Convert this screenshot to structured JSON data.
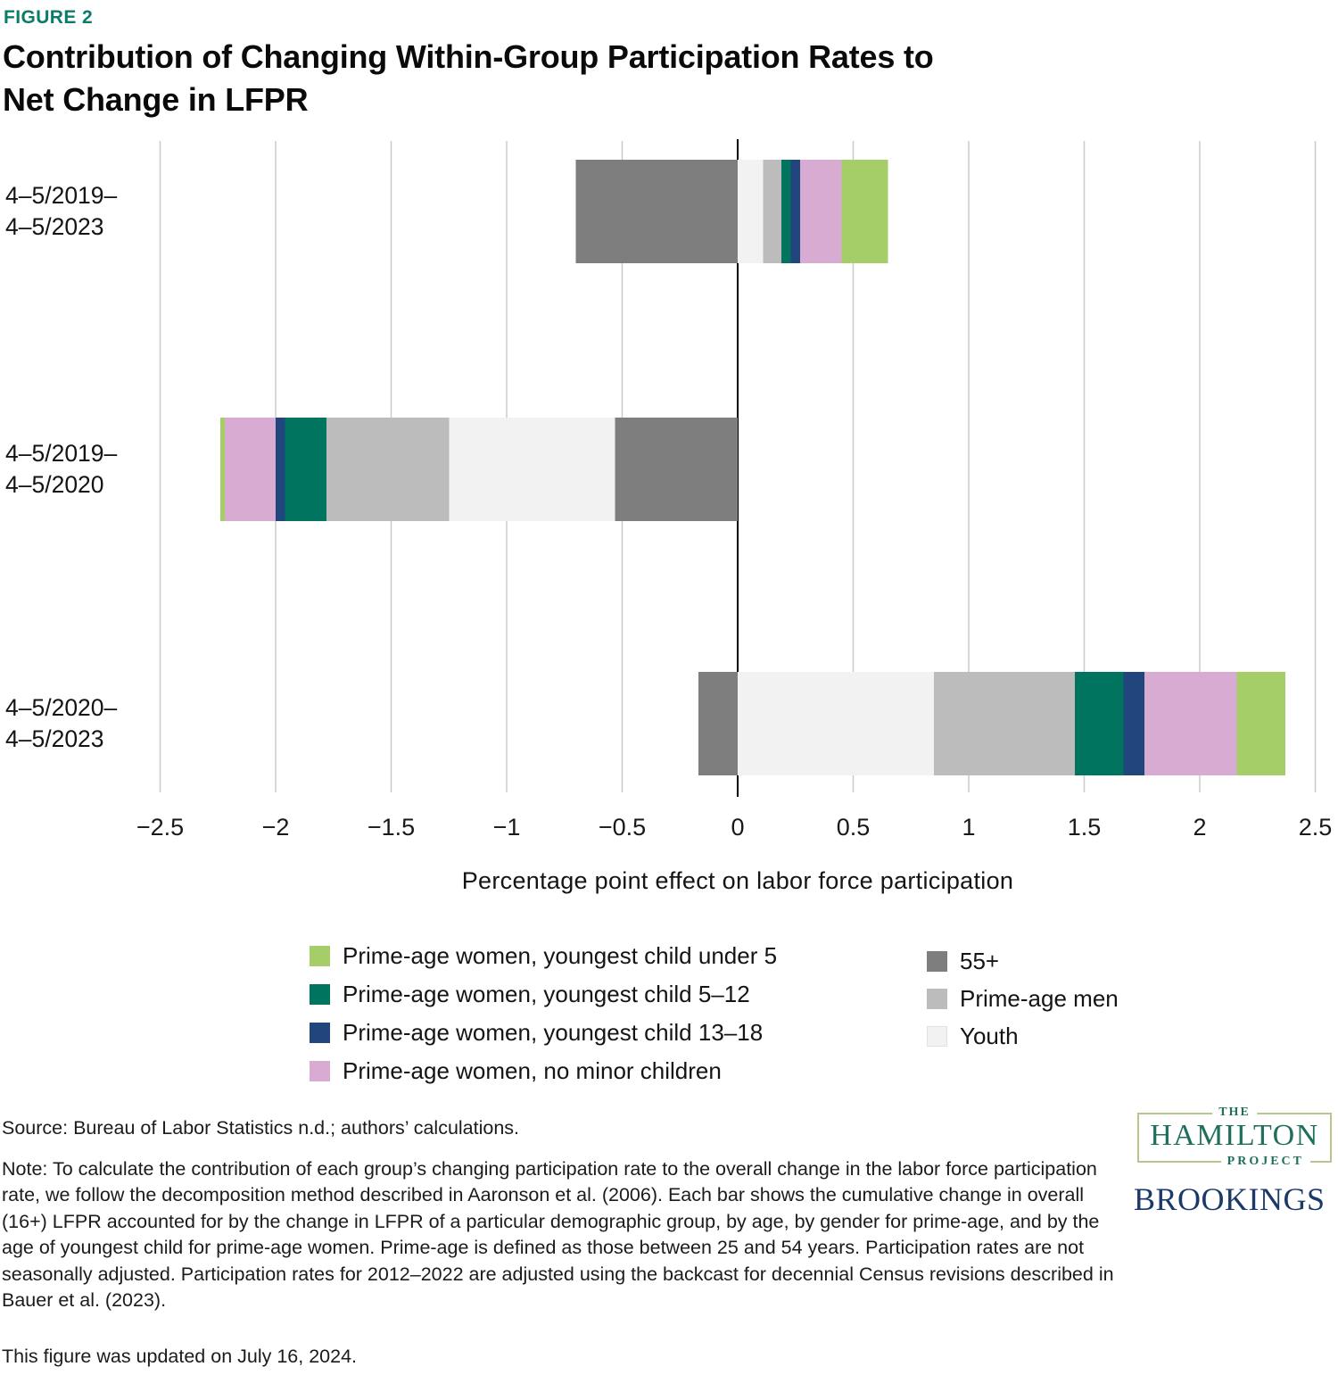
{
  "header": {
    "figure_label": "FIGURE 2",
    "title_lines": [
      "Contribution of Changing Within-Group Participation Rates to",
      "Net Change in LFPR"
    ]
  },
  "chart_data": {
    "type": "bar",
    "orientation": "horizontal",
    "stacked": true,
    "title": "Contribution of Changing Within-Group Participation Rates to Net Change in LFPR",
    "xlabel": "Percentage point effect on labor force participation",
    "ylabel": "",
    "xlim": [
      -2.5,
      2.5
    ],
    "grid": "vertical",
    "legend_position": "bottom",
    "categories": [
      [
        "4–5/2019–",
        "4–5/2023"
      ],
      [
        "4–5/2019–",
        "4–5/2020"
      ],
      [
        "4–5/2020–",
        "4–5/2023"
      ]
    ],
    "xticks": [
      -2.5,
      -2,
      -1.5,
      -1,
      -0.5,
      0,
      0.5,
      1,
      1.5,
      2,
      2.5
    ],
    "xtick_labels": [
      "−2.5",
      "−2",
      "−1.5",
      "−1",
      "−0.5",
      "0",
      "0.5",
      "1",
      "1.5",
      "2",
      "2.5"
    ],
    "series": [
      {
        "name": "55+",
        "color": "#7e7e7e",
        "values": [
          -0.7,
          -0.53,
          -0.17
        ]
      },
      {
        "name": "Youth",
        "color": "#f2f2f2",
        "values": [
          0.11,
          -0.72,
          0.85
        ]
      },
      {
        "name": "Prime-age men",
        "color": "#bcbcbc",
        "values": [
          0.08,
          -0.53,
          0.61
        ]
      },
      {
        "name": "Prime-age women, youngest child 5–12",
        "color": "#00745f",
        "values": [
          0.04,
          -0.18,
          0.21
        ]
      },
      {
        "name": "Prime-age women, youngest child 13–18",
        "color": "#21457d",
        "values": [
          0.04,
          -0.04,
          0.09
        ]
      },
      {
        "name": "Prime-age women, no minor children",
        "color": "#d7abd2",
        "values": [
          0.18,
          -0.22,
          0.4
        ]
      },
      {
        "name": "Prime-age women, youngest child under 5",
        "color": "#a5ce69",
        "values": [
          0.2,
          -0.02,
          0.21
        ]
      }
    ]
  },
  "legend": {
    "left_items": [
      {
        "label": "Prime-age women, youngest child under 5",
        "color": "#a5ce69"
      },
      {
        "label": "Prime-age women, youngest child 5–12",
        "color": "#00745f"
      },
      {
        "label": "Prime-age women, youngest child 13–18",
        "color": "#21457d"
      },
      {
        "label": "Prime-age women, no minor children",
        "color": "#d7abd2"
      }
    ],
    "right_items": [
      {
        "label": "55+",
        "color": "#7e7e7e"
      },
      {
        "label": "Prime-age men",
        "color": "#bcbcbc"
      },
      {
        "label": "Youth",
        "color": "#f2f2f2"
      }
    ]
  },
  "footer": {
    "source": "Source: Bureau of Labor Statistics n.d.; authors’ calculations.",
    "note": "Note: To calculate the contribution of each group’s changing participation rate to the overall change in the labor force participation rate, we follow the decomposition method described in Aaronson et al. (2006). Each bar shows the cumulative change in overall (16+) LFPR accounted for by the change in LFPR of a particular demographic group, by age, by gender for prime-age, and by the age of youngest child for prime-age women. Prime-age is defined as those between 25 and 54 years. Participation rates are not seasonally adjusted. Participation rates for 2012–2022 are adjusted using the backcast for decennial Census revisions described in Bauer et al. (2023).",
    "updated": "This figure was updated on July 16, 2024."
  },
  "logos": {
    "hamilton": {
      "the": "THE",
      "name": "HAMILTON",
      "project": "PROJECT"
    },
    "brookings": "BROOKINGS"
  },
  "colors": {
    "figure_label": "#0c7c6a",
    "gridline": "#cbcbcb",
    "zero_line": "#000000",
    "hamilton_green": "#1e6f5c",
    "brookings_navy": "#1b3a69"
  }
}
